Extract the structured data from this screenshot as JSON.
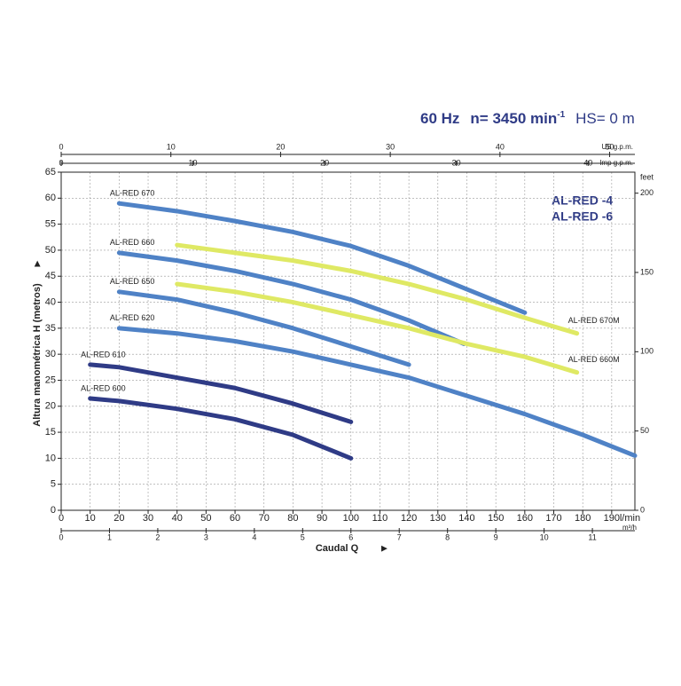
{
  "chart_data": {
    "type": "line",
    "title": {
      "freq": "60 Hz",
      "speed": "n= 3450 min",
      "speed_exp": "-1",
      "hs": "HS= 0 m"
    },
    "models": [
      "AL-RED -4",
      "AL-RED -6"
    ],
    "y_label": "Altura manométrica H (metros)",
    "x_label": "Caudal Q",
    "x_unit": "l/min",
    "xlim": [
      0,
      198
    ],
    "xticks": [
      0,
      10,
      20,
      30,
      40,
      50,
      60,
      70,
      80,
      90,
      100,
      110,
      120,
      130,
      140,
      150,
      160,
      170,
      180,
      190
    ],
    "ylim": [
      0,
      65
    ],
    "yticks": [
      0,
      5,
      10,
      15,
      20,
      25,
      30,
      35,
      40,
      45,
      50,
      55,
      60,
      65
    ],
    "y2_label": "feet",
    "y2lim": [
      0,
      213.25
    ],
    "y2ticks": [
      0,
      50,
      100,
      150,
      200
    ],
    "x_axes": [
      {
        "label": "m³/h",
        "lim": [
          0,
          11.88
        ],
        "ticks": [
          0,
          1,
          2,
          3,
          4,
          5,
          6,
          7,
          8,
          9,
          10,
          11
        ]
      },
      {
        "label": "US g.p.m.",
        "lim": [
          0,
          52.3
        ],
        "ticks": [
          0,
          10,
          20,
          30,
          40,
          50
        ]
      },
      {
        "label": "Imp g.p.m.",
        "lim": [
          0,
          43.55
        ],
        "ticks": [
          0,
          10,
          20,
          30,
          40
        ]
      }
    ],
    "grid": true,
    "series": [
      {
        "name": "AL-RED 670",
        "color": "#4f82c6",
        "x": [
          20,
          40,
          60,
          80,
          100,
          120,
          140,
          160
        ],
        "values": [
          59,
          57.5,
          55.6,
          53.5,
          50.8,
          47,
          42.5,
          38
        ]
      },
      {
        "name": "AL-RED 670M",
        "color": "#dfe964",
        "x": [
          40,
          60,
          80,
          100,
          120,
          140,
          160,
          178
        ],
        "values": [
          51,
          49.5,
          48,
          46,
          43.5,
          40.5,
          37,
          34
        ]
      },
      {
        "name": "AL-RED 660",
        "color": "#4f82c6",
        "x": [
          20,
          40,
          60,
          80,
          100,
          120,
          139
        ],
        "values": [
          49.5,
          48,
          46,
          43.5,
          40.5,
          36.5,
          32
        ]
      },
      {
        "name": "AL-RED 660M",
        "color": "#dfe964",
        "x": [
          40,
          60,
          80,
          100,
          120,
          140,
          160,
          178
        ],
        "values": [
          43.5,
          42,
          40,
          37.5,
          35,
          32,
          29.5,
          26.5
        ]
      },
      {
        "name": "AL-RED 650",
        "color": "#4f82c6",
        "x": [
          20,
          40,
          60,
          80,
          100,
          120
        ],
        "values": [
          42,
          40.5,
          38,
          35,
          31.5,
          28
        ]
      },
      {
        "name": "AL-RED 620",
        "color": "#4f82c6",
        "x": [
          20,
          40,
          60,
          80,
          100,
          120,
          140,
          160,
          180,
          198
        ],
        "values": [
          35,
          34,
          32.5,
          30.5,
          28,
          25.5,
          22,
          18.5,
          14.5,
          10.5
        ]
      },
      {
        "name": "AL-RED 610",
        "color": "#2f3b86",
        "x": [
          10,
          20,
          40,
          60,
          80,
          100
        ],
        "values": [
          28,
          27.5,
          25.5,
          23.5,
          20.5,
          17
        ]
      },
      {
        "name": "AL-RED 600",
        "color": "#2f3b86",
        "x": [
          10,
          20,
          40,
          60,
          80,
          100
        ],
        "values": [
          21.5,
          21,
          19.5,
          17.5,
          14.5,
          10
        ]
      }
    ]
  }
}
